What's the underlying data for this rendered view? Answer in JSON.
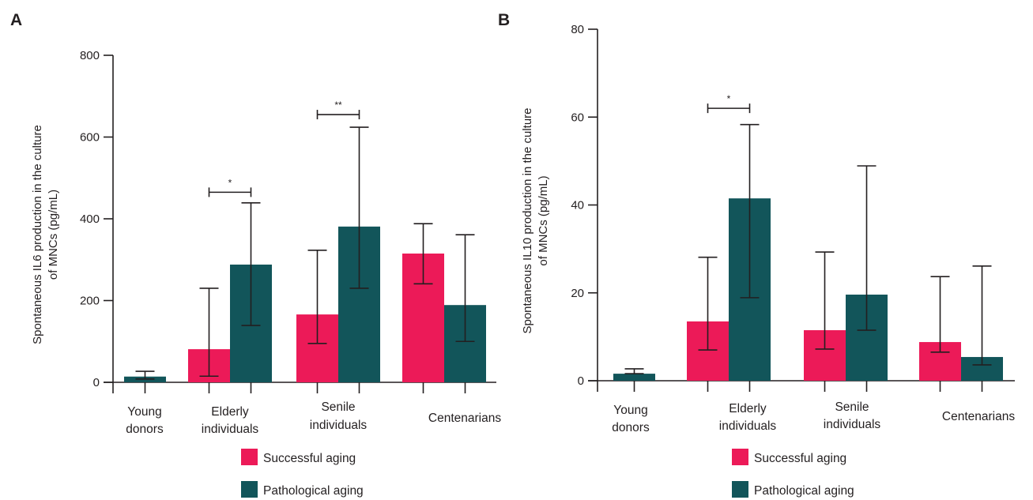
{
  "colors": {
    "successful": "#ec1a58",
    "pathological": "#12555a",
    "axis": "#231f20"
  },
  "chart_data": [
    {
      "panel": "A",
      "type": "bar",
      "title": "",
      "ylabel_lines": [
        "Spontaneous IL6 production in the culture",
        "of MNCs (pg/mL)"
      ],
      "xlabel": "",
      "ylim": [
        0,
        800
      ],
      "yticks": [
        0,
        200,
        400,
        600,
        800
      ],
      "grid": false,
      "categories": [
        {
          "lines": [
            "Young",
            "donors"
          ]
        },
        {
          "lines": [
            "Elderly",
            "individuals"
          ]
        },
        {
          "lines": [
            "Senile",
            "individuals"
          ]
        },
        {
          "lines": [
            "Centenarians"
          ]
        }
      ],
      "series": [
        {
          "name": "Successful aging",
          "key": "successful",
          "values": [
            null,
            81,
            166,
            315
          ],
          "err_low": [
            null,
            15,
            95,
            241
          ],
          "err_high": [
            null,
            230,
            323,
            388
          ]
        },
        {
          "name": "Pathological aging",
          "key": "pathological",
          "values": [
            14,
            288,
            381,
            189
          ],
          "err_low": [
            8,
            139,
            230,
            100
          ],
          "err_high": [
            27,
            439,
            624,
            361
          ]
        }
      ],
      "significance": [
        {
          "category": 1,
          "label": "*",
          "y": 465
        },
        {
          "category": 2,
          "label": "**",
          "y": 655
        }
      ],
      "legend": {
        "placement": "bottom-center",
        "entries": [
          "Successful aging",
          "Pathological aging"
        ]
      }
    },
    {
      "panel": "B",
      "type": "bar",
      "title": "",
      "ylabel_lines": [
        "Spontaneous IL10 production in the culture",
        "of MNCs (pg/mL)"
      ],
      "xlabel": "",
      "ylim": [
        0,
        80
      ],
      "yticks": [
        0,
        20,
        40,
        60,
        80
      ],
      "grid": false,
      "categories": [
        {
          "lines": [
            "Young",
            "donors"
          ]
        },
        {
          "lines": [
            "Elderly",
            "individuals"
          ]
        },
        {
          "lines": [
            "Senile",
            "individuals"
          ]
        },
        {
          "lines": [
            "Centenarians"
          ]
        }
      ],
      "series": [
        {
          "name": "Successful aging",
          "key": "successful",
          "values": [
            null,
            13.5,
            11.5,
            8.8
          ],
          "err_low": [
            null,
            7.0,
            7.2,
            6.5
          ],
          "err_high": [
            null,
            28.1,
            29.3,
            23.7
          ]
        },
        {
          "name": "Pathological aging",
          "key": "pathological",
          "values": [
            1.6,
            41.5,
            19.6,
            5.4
          ],
          "err_low": [
            1.6,
            18.9,
            11.5,
            3.6
          ],
          "err_high": [
            2.7,
            58.3,
            48.9,
            26.1
          ]
        }
      ],
      "significance": [
        {
          "category": 1,
          "label": "*",
          "y": 62
        }
      ],
      "legend": {
        "placement": "bottom-center",
        "entries": [
          "Successful aging",
          "Pathological aging"
        ]
      }
    }
  ]
}
